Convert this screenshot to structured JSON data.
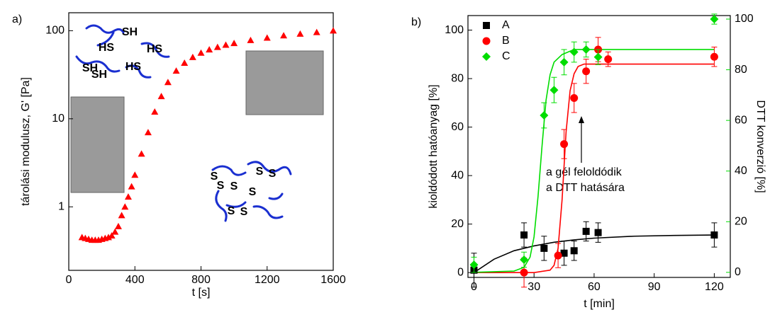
{
  "chart_data": [
    {
      "type": "scatter",
      "panel_label": "a)",
      "x_label": "t [s]",
      "y_label": "tárolási modulusz, G' [Pa]",
      "log_y": true,
      "color": "#ff0000",
      "marker": "triangle",
      "xlim": [
        0,
        1600
      ],
      "xticks": [
        0,
        400,
        800,
        1200,
        1600
      ],
      "ylim": [
        0.19,
        160
      ],
      "yticks": [
        1,
        10,
        100
      ],
      "x": [
        80,
        100,
        120,
        140,
        160,
        180,
        200,
        220,
        240,
        260,
        280,
        300,
        320,
        340,
        360,
        380,
        400,
        440,
        480,
        520,
        560,
        600,
        650,
        700,
        750,
        800,
        850,
        900,
        950,
        1000,
        1100,
        1200,
        1300,
        1400,
        1500,
        1600
      ],
      "values": [
        0.45,
        0.44,
        0.43,
        0.42,
        0.42,
        0.42,
        0.43,
        0.44,
        0.45,
        0.47,
        0.52,
        0.6,
        0.8,
        1.0,
        1.3,
        1.7,
        2.3,
        4,
        7,
        12,
        18,
        26,
        35,
        43,
        50,
        56,
        61,
        65,
        69,
        72,
        78,
        83,
        88,
        92,
        96,
        100
      ],
      "annotations": [
        "SH",
        "HS",
        "HS",
        "SH",
        "SH",
        "HS",
        "S",
        "S",
        "S",
        "S",
        "S",
        "S",
        "S",
        "S"
      ]
    },
    {
      "type": "scatter",
      "panel_label": "b)",
      "x_label": "t [min]",
      "y_label": "kioldódott hatóanyag [%]",
      "y2_label": "DTT konverzió [%]",
      "y2_color": "#00dd00",
      "annotation": [
        "a gél feloldódik",
        "a DTT hatására"
      ],
      "xlim": [
        -3,
        128
      ],
      "xticks": [
        0,
        30,
        60,
        90,
        120
      ],
      "ylim": [
        -2,
        106
      ],
      "yticks": [
        0,
        20,
        40,
        60,
        80,
        100
      ],
      "y2lim": [
        -2,
        101.4
      ],
      "y2ticks": [
        0,
        20,
        40,
        60,
        80,
        100
      ],
      "series": [
        {
          "name": "A",
          "color": "#000000",
          "marker": "square",
          "x": [
            0,
            25,
            35,
            45,
            50,
            56,
            62,
            120
          ],
          "values": [
            1,
            15.5,
            10,
            8,
            9,
            17,
            16.5,
            15.5
          ],
          "errors": [
            7,
            5,
            5,
            5,
            4,
            4,
            4,
            5
          ]
        },
        {
          "name": "B",
          "color": "#ff0000",
          "marker": "circle",
          "x": [
            25,
            42,
            45,
            50,
            56,
            62,
            67,
            120
          ],
          "values": [
            0,
            7,
            53,
            72,
            83,
            92,
            88,
            89
          ],
          "errors": [
            6,
            5,
            6,
            6,
            5,
            5,
            3,
            4
          ]
        },
        {
          "name": "C",
          "color": "#00dd00",
          "marker": "diamond",
          "axis": "y2",
          "x": [
            0,
            25,
            35,
            40,
            45,
            50,
            56,
            62,
            120
          ],
          "values": [
            3,
            5,
            62,
            72,
            83,
            87,
            88,
            85,
            100
          ],
          "errors": [
            3,
            3,
            5,
            5,
            5,
            4,
            3,
            3,
            2
          ]
        }
      ],
      "fit_lines": [
        {
          "color": "#000000",
          "x": [
            0,
            10,
            20,
            30,
            40,
            50,
            60,
            80,
            100,
            120
          ],
          "values": [
            0,
            5.5,
            9,
            11,
            12.5,
            13.5,
            14.2,
            15,
            15.3,
            15.5
          ]
        },
        {
          "color": "#ff0000",
          "x": [
            0,
            30,
            38,
            40,
            42,
            44,
            46,
            48,
            50,
            52,
            55,
            60,
            80,
            120
          ],
          "values": [
            0,
            0,
            1,
            3,
            10,
            30,
            58,
            75,
            82,
            85,
            86,
            86,
            86,
            86
          ]
        },
        {
          "color": "#00dd00",
          "axis": "y2",
          "x": [
            0,
            20,
            25,
            28,
            30,
            32,
            34,
            36,
            38,
            40,
            44,
            50,
            60,
            80,
            120
          ],
          "values": [
            0,
            0.5,
            2,
            6,
            14,
            30,
            50,
            68,
            78,
            83,
            86,
            88,
            88,
            88,
            88
          ]
        }
      ]
    }
  ]
}
